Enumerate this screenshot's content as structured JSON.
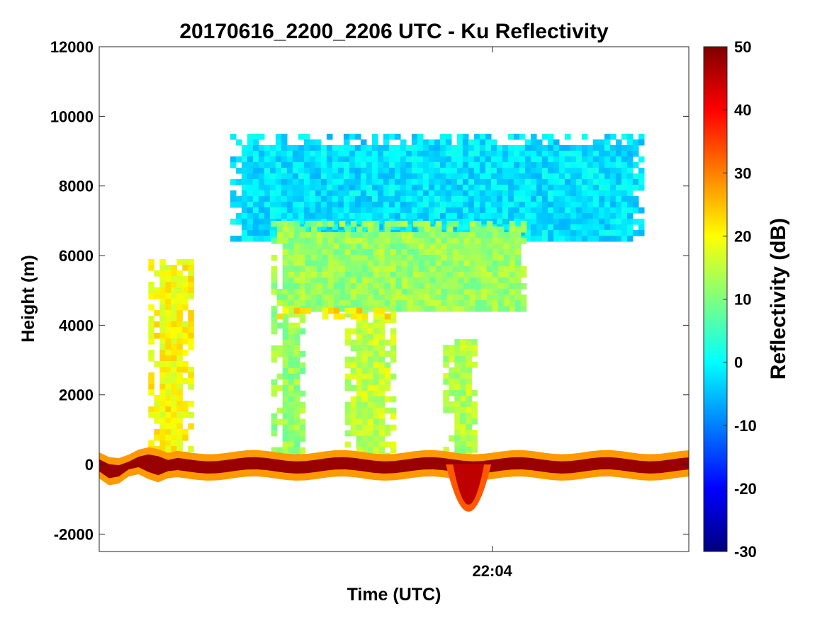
{
  "chart_data": {
    "type": "heatmap",
    "title": "20170616_2200_2206 UTC - Ku Reflectivity",
    "xlabel": "Time (UTC)",
    "ylabel": "Height (m)",
    "x_ticks": [
      "22:04"
    ],
    "y_ticks": [
      12000,
      10000,
      8000,
      6000,
      4000,
      2000,
      0,
      -2000
    ],
    "ylim": [
      -2500,
      12000
    ],
    "xlim": [
      "22:00",
      "22:06"
    ],
    "grid": false,
    "colorbar": {
      "label": "Reflectivity (dB)",
      "range": [
        -30,
        50
      ],
      "ticks": [
        50,
        40,
        30,
        20,
        10,
        0,
        -10,
        -20,
        -30
      ],
      "colormap": "jet"
    },
    "features": [
      {
        "name": "surface-return",
        "time": [
          "22:00",
          "22:06"
        ],
        "height_m": [
          -200,
          150
        ],
        "reflectivity_db": 48
      },
      {
        "name": "surface-dip",
        "time": [
          "22:03:36",
          "22:03:55"
        ],
        "height_m": [
          -1900,
          0
        ],
        "reflectivity_db": 45
      },
      {
        "name": "anvil-cloud",
        "time": [
          "22:01:20",
          "22:05:30"
        ],
        "height_m": [
          6500,
          9500
        ],
        "reflectivity_db": -2
      },
      {
        "name": "upper-stratiform",
        "time": [
          "22:01:45",
          "22:04:20"
        ],
        "height_m": [
          4500,
          7000
        ],
        "reflectivity_db": 12
      },
      {
        "name": "precip-column-1",
        "time": [
          "22:00:30",
          "22:00:55"
        ],
        "height_m": [
          0,
          5900
        ],
        "reflectivity_db": 20
      },
      {
        "name": "precip-column-2",
        "time": [
          "22:01:45",
          "22:02:05"
        ],
        "height_m": [
          0,
          4400
        ],
        "reflectivity_db": 12
      },
      {
        "name": "precip-column-3",
        "time": [
          "22:02:30",
          "22:03:00"
        ],
        "height_m": [
          0,
          4400
        ],
        "reflectivity_db": 15
      },
      {
        "name": "precip-column-4",
        "time": [
          "22:03:30",
          "22:03:50"
        ],
        "height_m": [
          0,
          3600
        ],
        "reflectivity_db": 14
      },
      {
        "name": "bright-band",
        "time": [
          "22:01:45",
          "22:03:00"
        ],
        "height_m": [
          4200,
          4500
        ],
        "reflectivity_db": 22
      }
    ],
    "colors": {
      "jet": [
        "#00007f",
        "#0000ff",
        "#007fff",
        "#00ffff",
        "#7fff7f",
        "#ffff00",
        "#ff7f00",
        "#ff0000",
        "#7f0000"
      ]
    }
  }
}
